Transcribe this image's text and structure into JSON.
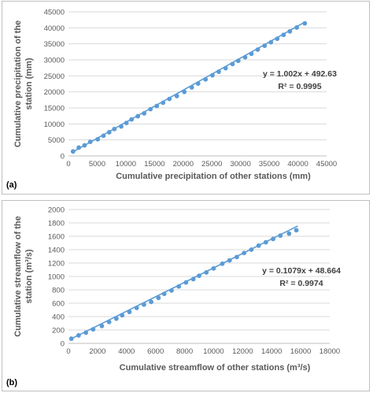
{
  "chart_data": [
    {
      "id": "a",
      "type": "scatter",
      "panel_label": "(a)",
      "xlabel": "Cumulative precipitation of other stations (mm)",
      "ylabel_lines": [
        "Cumulative precipitation of the",
        "station (mm)"
      ],
      "xlim": [
        0,
        45000
      ],
      "ylim": [
        0,
        45000
      ],
      "xticks": [
        0,
        5000,
        10000,
        15000,
        20000,
        25000,
        30000,
        35000,
        40000,
        45000
      ],
      "yticks": [
        0,
        5000,
        10000,
        15000,
        20000,
        25000,
        30000,
        35000,
        40000,
        45000
      ],
      "grid": "horizontal",
      "equation": "y = 1.002x + 492.63",
      "r_squared": "R² = 0.9995",
      "trendline": {
        "slope": 1.002,
        "intercept": 492.63,
        "x_range": [
          800,
          41200
        ]
      },
      "point_color": "#5b9bd5",
      "line_color": "#5b9bd5",
      "x": [
        800,
        1800,
        2800,
        3800,
        5100,
        6100,
        7100,
        8000,
        9200,
        10100,
        11000,
        12100,
        13200,
        14300,
        15400,
        16500,
        17600,
        18900,
        20200,
        21500,
        22600,
        23900,
        25100,
        26200,
        27400,
        28600,
        29600,
        30800,
        31900,
        33000,
        34200,
        35300,
        36400,
        37500,
        38600,
        39800,
        41200
      ],
      "y": [
        1400,
        2600,
        3300,
        4400,
        5200,
        6300,
        7400,
        8400,
        9200,
        10300,
        11400,
        12400,
        13300,
        14600,
        15600,
        16600,
        17800,
        18700,
        20000,
        21400,
        22600,
        23900,
        25200,
        26300,
        27400,
        28700,
        29700,
        30800,
        31900,
        33200,
        34400,
        35500,
        36600,
        37800,
        38900,
        40100,
        41400
      ]
    },
    {
      "id": "b",
      "type": "scatter",
      "panel_label": "(b)",
      "xlabel": "Cumulative streamflow of other stations (m³/s)",
      "ylabel_lines": [
        "Cumulative streamflow of the",
        "station (m³/s)"
      ],
      "xlim": [
        0,
        18000
      ],
      "ylim": [
        0,
        2000
      ],
      "xticks": [
        0,
        2000,
        4000,
        6000,
        8000,
        10000,
        12000,
        14000,
        16000,
        18000
      ],
      "yticks": [
        0,
        200,
        400,
        600,
        800,
        1000,
        1200,
        1400,
        1600,
        1800,
        2000
      ],
      "grid": "horizontal",
      "equation": "y = 0.1079x + 48.664",
      "r_squared": "R² = 0.9974",
      "trendline": {
        "slope": 0.1079,
        "intercept": 48.664,
        "x_range": [
          200,
          15800
        ]
      },
      "point_color": "#5b9bd5",
      "line_color": "#5b9bd5",
      "x": [
        200,
        700,
        1200,
        1700,
        2300,
        2800,
        3300,
        3700,
        4200,
        4700,
        5200,
        5700,
        6200,
        6600,
        7100,
        7600,
        8100,
        8600,
        9000,
        9500,
        10000,
        10600,
        11100,
        11600,
        12100,
        12600,
        13100,
        13600,
        14100,
        14600,
        15200,
        15700
      ],
      "y": [
        70,
        120,
        160,
        210,
        260,
        320,
        370,
        420,
        470,
        530,
        580,
        620,
        680,
        740,
        790,
        850,
        910,
        960,
        1010,
        1060,
        1120,
        1190,
        1240,
        1290,
        1350,
        1400,
        1460,
        1510,
        1560,
        1610,
        1640,
        1690
      ]
    }
  ]
}
